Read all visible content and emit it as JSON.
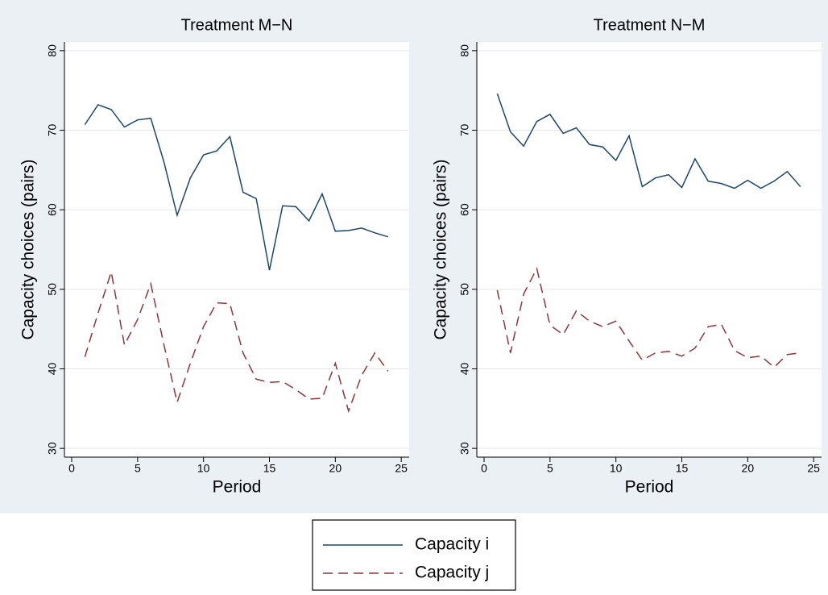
{
  "chart_data": [
    {
      "type": "line",
      "title": "Treatment M−N",
      "xlabel": "Period",
      "ylabel": "Capacity choices (pairs)",
      "x": [
        1,
        2,
        3,
        4,
        5,
        6,
        7,
        8,
        9,
        10,
        11,
        12,
        13,
        14,
        15,
        16,
        17,
        18,
        19,
        20,
        21,
        22,
        23,
        24
      ],
      "series": [
        {
          "name": "Capacity i",
          "color": "#1a476f",
          "dash": "none",
          "values": [
            70.7,
            73.2,
            72.6,
            70.4,
            71.3,
            71.5,
            66.0,
            59.3,
            64.0,
            66.9,
            67.4,
            69.2,
            62.2,
            61.4,
            52.4,
            60.5,
            60.4,
            58.6,
            62.0,
            57.3,
            57.4,
            57.7,
            57.1,
            56.6
          ]
        },
        {
          "name": "Capacity j",
          "color": "#90353b",
          "dash": "12 7",
          "values": [
            41.5,
            47.0,
            52.2,
            43.0,
            46.2,
            50.7,
            43.0,
            35.8,
            40.7,
            45.3,
            48.3,
            48.2,
            42.0,
            38.7,
            38.3,
            38.4,
            37.4,
            36.2,
            36.3,
            40.7,
            34.7,
            39.2,
            42.0,
            39.7
          ]
        }
      ],
      "xlim": [
        -0.55,
        25.6
      ],
      "xticks": [
        0,
        5,
        10,
        15,
        20,
        25
      ],
      "ylim": [
        28.9,
        81.1
      ],
      "yticks": [
        30,
        40,
        50,
        60,
        70,
        80
      ],
      "grid": true
    },
    {
      "type": "line",
      "title": "Treatment N−M",
      "xlabel": "Period",
      "ylabel": "Capacity choices (pairs)",
      "x": [
        1,
        2,
        3,
        4,
        5,
        6,
        7,
        8,
        9,
        10,
        11,
        12,
        13,
        14,
        15,
        16,
        17,
        18,
        19,
        20,
        21,
        22,
        23,
        24
      ],
      "series": [
        {
          "color": "#1a476f",
          "dash": "none",
          "values": [
            74.6,
            69.8,
            68.0,
            71.1,
            72.0,
            69.6,
            70.3,
            68.2,
            67.9,
            66.2,
            69.3,
            62.9,
            64.0,
            64.4,
            62.8,
            66.4,
            63.6,
            63.3,
            62.7,
            63.7,
            62.7,
            63.6,
            64.8,
            62.9
          ]
        },
        {
          "color": "#90353b",
          "dash": "12 7",
          "values": [
            49.9,
            42.0,
            49.4,
            52.6,
            45.5,
            44.3,
            47.3,
            46.0,
            45.3,
            46.0,
            43.5,
            41.1,
            42.0,
            42.2,
            41.6,
            42.6,
            45.3,
            45.6,
            42.3,
            41.4,
            41.6,
            40.2,
            41.8,
            42.0
          ]
        }
      ],
      "xlim": [
        -0.55,
        25.6
      ],
      "xticks": [
        0,
        5,
        10,
        15,
        20,
        25
      ],
      "ylim": [
        28.9,
        81.1
      ],
      "yticks": [
        30,
        40,
        50,
        60,
        70,
        80
      ],
      "grid": true
    }
  ]
}
